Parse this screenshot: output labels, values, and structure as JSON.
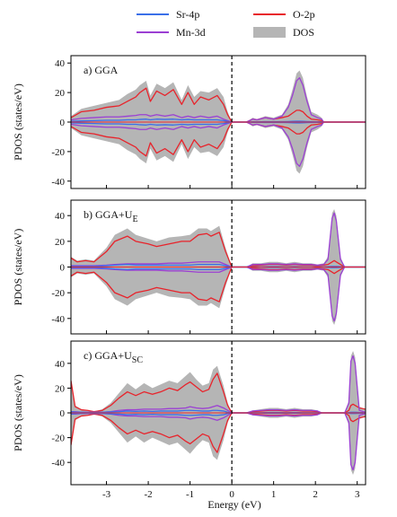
{
  "legend": {
    "items": [
      {
        "key": "sr4p",
        "label": "Sr-4p",
        "color": "#3a6fe8",
        "kind": "line"
      },
      {
        "key": "o2p",
        "label": "O-2p",
        "color": "#e8232b",
        "kind": "line"
      },
      {
        "key": "mn3d",
        "label": "Mn-3d",
        "color": "#9b3fd3",
        "kind": "line"
      },
      {
        "key": "dos",
        "label": "DOS",
        "color": "#b5b5b5",
        "kind": "patch"
      }
    ]
  },
  "xlabel": "Energy (eV)",
  "chart_data": [
    {
      "type": "area",
      "panel_label": "a) GGA",
      "ylabel": "PDOS  (states/eV)",
      "xlim": [
        -3.85,
        3.2
      ],
      "ylim": [
        -45,
        45
      ],
      "xticks": [
        -3,
        -2,
        -1,
        0,
        1,
        2,
        3
      ],
      "yticks": [
        -40,
        -20,
        0,
        20,
        40
      ],
      "fermi_level": 0,
      "series": [
        {
          "name": "DOS",
          "x": [
            -3.85,
            -3.6,
            -3.3,
            -3.0,
            -2.7,
            -2.5,
            -2.3,
            -2.2,
            -2.05,
            -1.95,
            -1.8,
            -1.6,
            -1.4,
            -1.2,
            -1.05,
            -0.9,
            -0.75,
            -0.55,
            -0.35,
            -0.2,
            -0.1,
            0,
            0.35,
            0.5,
            0.6,
            0.8,
            1.0,
            1.2,
            1.35,
            1.45,
            1.55,
            1.62,
            1.7,
            1.8,
            1.9,
            2.05,
            2.15,
            2.2,
            2.3,
            3.2
          ],
          "y": [
            4,
            9,
            11,
            13,
            15,
            19,
            22,
            25,
            28,
            18,
            26,
            23,
            27,
            15,
            25,
            17,
            21,
            20,
            23,
            17,
            7,
            0,
            0,
            3,
            2,
            4,
            3,
            5,
            12,
            22,
            33,
            35,
            30,
            17,
            7,
            5,
            3,
            0,
            0,
            0
          ]
        },
        {
          "name": "O-2p",
          "x": [
            -3.85,
            -3.6,
            -3.3,
            -3.0,
            -2.7,
            -2.5,
            -2.3,
            -2.2,
            -2.05,
            -1.95,
            -1.8,
            -1.6,
            -1.4,
            -1.2,
            -1.05,
            -0.9,
            -0.75,
            -0.55,
            -0.35,
            -0.2,
            -0.1,
            0,
            0.35,
            0.5,
            0.6,
            0.8,
            1.0,
            1.2,
            1.35,
            1.45,
            1.55,
            1.62,
            1.7,
            1.8,
            1.9,
            2.05,
            2.15,
            2.2,
            2.3,
            3.2
          ],
          "y": [
            3,
            7,
            8,
            10,
            11,
            14,
            17,
            20,
            23,
            14,
            21,
            18,
            22,
            12,
            20,
            12,
            17,
            15,
            18,
            12,
            5,
            0,
            0,
            2,
            1.5,
            3,
            2,
            3,
            4,
            6,
            8,
            8,
            7,
            4,
            2,
            1.5,
            1,
            0,
            0,
            0
          ]
        },
        {
          "name": "Mn-3d",
          "x": [
            -3.85,
            -3.6,
            -3.3,
            -3.0,
            -2.7,
            -2.5,
            -2.3,
            -2.2,
            -2.05,
            -1.95,
            -1.8,
            -1.6,
            -1.4,
            -1.2,
            -1.05,
            -0.9,
            -0.75,
            -0.55,
            -0.35,
            -0.2,
            -0.1,
            0,
            0.35,
            0.5,
            0.6,
            0.8,
            1.0,
            1.2,
            1.35,
            1.45,
            1.55,
            1.62,
            1.7,
            1.8,
            1.9,
            2.05,
            2.15,
            2.2,
            2.3,
            3.2
          ],
          "y": [
            1.5,
            2.5,
            3,
            3.5,
            3.5,
            4,
            4.5,
            5,
            5,
            4,
            5,
            4,
            5,
            3,
            4,
            3,
            4,
            3,
            4,
            2,
            1,
            0,
            0,
            2,
            1.5,
            3,
            2,
            4,
            10,
            18,
            28,
            30,
            25,
            14,
            5,
            3,
            2,
            0,
            0,
            0
          ]
        },
        {
          "name": "Sr-4p",
          "x": [
            -3.85,
            -3.6,
            -3.3,
            -3.0,
            -2.7,
            -2.5,
            -2.3,
            -2.2,
            -2.05,
            -1.95,
            -1.8,
            -1.6,
            -1.4,
            -1.2,
            -1.05,
            -0.9,
            -0.75,
            -0.55,
            -0.35,
            -0.2,
            -0.1,
            0,
            0.35,
            0.5,
            0.6,
            0.8,
            1.0,
            1.2,
            1.35,
            1.45,
            1.55,
            1.62,
            1.7,
            1.8,
            1.9,
            2.05,
            2.15,
            2.2,
            2.3,
            3.2
          ],
          "y": [
            0.5,
            0.8,
            1,
            1.2,
            1.2,
            1.5,
            1.5,
            1.8,
            2,
            1.5,
            2,
            1.8,
            2,
            1.5,
            1.8,
            1.5,
            1.5,
            1.5,
            1.5,
            1,
            0.5,
            0,
            0,
            0.2,
            0.2,
            0.3,
            0.3,
            0.3,
            0.4,
            0.5,
            0.6,
            0.6,
            0.5,
            0.4,
            0.3,
            0.2,
            0.2,
            0,
            0,
            0
          ]
        }
      ]
    },
    {
      "type": "area",
      "panel_label": "b) GGA+U",
      "panel_label_sub": "E",
      "ylabel": "PDOS  (states/eV)",
      "xlim": [
        -3.85,
        3.2
      ],
      "ylim": [
        -52,
        52
      ],
      "xticks": [
        -3,
        -2,
        -1,
        0,
        1,
        2,
        3
      ],
      "yticks": [
        -40,
        -20,
        0,
        20,
        40
      ],
      "fermi_level": 0,
      "series": [
        {
          "name": "DOS",
          "x": [
            -3.85,
            -3.7,
            -3.5,
            -3.3,
            -3.0,
            -2.8,
            -2.5,
            -2.3,
            -2.0,
            -1.8,
            -1.5,
            -1.2,
            -1.0,
            -0.8,
            -0.6,
            -0.5,
            -0.3,
            -0.15,
            0,
            0.35,
            0.5,
            0.7,
            0.9,
            1.1,
            1.3,
            1.5,
            1.7,
            1.9,
            2.05,
            2.2,
            2.3,
            2.4,
            2.45,
            2.5,
            2.6,
            2.7,
            3.2
          ],
          "y": [
            8,
            5,
            6,
            5,
            15,
            25,
            30,
            25,
            22,
            20,
            23,
            24,
            25,
            30,
            30,
            28,
            32,
            15,
            0,
            0,
            3,
            3,
            4,
            4,
            3,
            4,
            3,
            3,
            2,
            3,
            8,
            42,
            45,
            40,
            8,
            0,
            0
          ]
        },
        {
          "name": "O-2p",
          "x": [
            -3.85,
            -3.7,
            -3.5,
            -3.3,
            -3.0,
            -2.8,
            -2.5,
            -2.3,
            -2.0,
            -1.8,
            -1.5,
            -1.2,
            -1.0,
            -0.8,
            -0.6,
            -0.5,
            -0.3,
            -0.15,
            0,
            0.35,
            0.5,
            0.7,
            0.9,
            1.1,
            1.3,
            1.5,
            1.7,
            1.9,
            2.05,
            2.2,
            2.3,
            2.4,
            2.45,
            2.5,
            2.6,
            2.7,
            3.2
          ],
          "y": [
            7,
            4,
            5,
            4,
            12,
            20,
            24,
            20,
            18,
            16,
            18,
            20,
            20,
            25,
            26,
            24,
            27,
            12,
            0,
            0,
            1,
            1.5,
            2,
            2,
            1.5,
            2,
            1.5,
            1.5,
            1,
            1.5,
            2,
            4,
            5,
            4,
            2,
            0,
            0
          ]
        },
        {
          "name": "Mn-3d",
          "x": [
            -3.85,
            -3.7,
            -3.5,
            -3.3,
            -3.0,
            -2.8,
            -2.5,
            -2.3,
            -2.0,
            -1.8,
            -1.5,
            -1.2,
            -1.0,
            -0.8,
            -0.6,
            -0.5,
            -0.3,
            -0.15,
            0,
            0.35,
            0.5,
            0.7,
            0.9,
            1.1,
            1.3,
            1.5,
            1.7,
            1.9,
            2.05,
            2.2,
            2.3,
            2.4,
            2.45,
            2.5,
            2.6,
            2.7,
            3.2
          ],
          "y": [
            1,
            1,
            1,
            1,
            1.5,
            2,
            2.5,
            2.5,
            2.5,
            2.5,
            3,
            3,
            3.5,
            4,
            4,
            4,
            4,
            2,
            0,
            0,
            2,
            2,
            2.5,
            2.5,
            2,
            2.5,
            2,
            2,
            1.5,
            2,
            6,
            38,
            42,
            36,
            6,
            0,
            0
          ]
        },
        {
          "name": "Sr-4p",
          "x": [
            -3.85,
            -3.7,
            -3.5,
            -3.3,
            -3.0,
            -2.8,
            -2.5,
            -2.3,
            -2.0,
            -1.8,
            -1.5,
            -1.2,
            -1.0,
            -0.8,
            -0.6,
            -0.5,
            -0.3,
            -0.15,
            0,
            0.35,
            0.5,
            0.7,
            0.9,
            1.1,
            1.3,
            1.5,
            1.7,
            1.9,
            2.05,
            2.2,
            2.3,
            2.4,
            2.45,
            2.5,
            2.6,
            2.7,
            3.2
          ],
          "y": [
            0.5,
            0.5,
            0.5,
            0.5,
            1,
            1.5,
            2,
            1.5,
            1.5,
            1.5,
            1.5,
            1.5,
            1.5,
            2,
            2,
            2,
            2,
            1,
            0,
            0,
            0.2,
            0.2,
            0.3,
            0.3,
            0.2,
            0.3,
            0.2,
            0.2,
            0.2,
            0.2,
            0.3,
            0.5,
            0.5,
            0.5,
            0.3,
            0,
            0
          ]
        }
      ]
    },
    {
      "type": "area",
      "panel_label": "c) GGA+U",
      "panel_label_sub": "SC",
      "ylabel": "PDOS  (states/eV)",
      "xlim": [
        -3.85,
        3.2
      ],
      "ylim": [
        -58,
        58
      ],
      "xticks": [
        -3,
        -2,
        -1,
        0,
        1,
        2,
        3
      ],
      "yticks": [
        -40,
        -20,
        0,
        20,
        40
      ],
      "fermi_level": 0,
      "series": [
        {
          "name": "DOS",
          "x": [
            -3.85,
            -3.75,
            -3.6,
            -3.45,
            -3.3,
            -3.1,
            -2.9,
            -2.7,
            -2.5,
            -2.3,
            -2.1,
            -1.9,
            -1.7,
            -1.5,
            -1.3,
            -1.1,
            -1.0,
            -0.85,
            -0.7,
            -0.55,
            -0.45,
            -0.35,
            -0.2,
            -0.1,
            0,
            0.35,
            0.5,
            0.7,
            0.9,
            1.1,
            1.3,
            1.5,
            1.7,
            1.9,
            2.05,
            2.15,
            2.7,
            2.8,
            2.85,
            2.9,
            2.95,
            3.05,
            3.2
          ],
          "y": [
            28,
            6,
            3,
            2,
            1,
            3,
            8,
            16,
            24,
            19,
            24,
            20,
            23,
            26,
            24,
            30,
            33,
            27,
            22,
            24,
            35,
            38,
            22,
            8,
            0,
            0,
            2,
            3,
            4,
            4,
            3,
            4,
            3,
            3,
            2,
            0,
            0,
            10,
            46,
            50,
            45,
            5,
            3
          ]
        },
        {
          "name": "O-2p",
          "x": [
            -3.85,
            -3.75,
            -3.6,
            -3.45,
            -3.3,
            -3.1,
            -2.9,
            -2.7,
            -2.5,
            -2.3,
            -2.1,
            -1.9,
            -1.7,
            -1.5,
            -1.3,
            -1.1,
            -1.0,
            -0.85,
            -0.7,
            -0.55,
            -0.45,
            -0.35,
            -0.2,
            -0.1,
            0,
            0.35,
            0.5,
            0.7,
            0.9,
            1.1,
            1.3,
            1.5,
            1.7,
            1.9,
            2.05,
            2.15,
            2.7,
            2.8,
            2.85,
            2.9,
            2.95,
            3.05,
            3.2
          ],
          "y": [
            26,
            5,
            2.5,
            2,
            1,
            2,
            6,
            12,
            17,
            14,
            17,
            15,
            17,
            20,
            18,
            23,
            25,
            21,
            17,
            19,
            27,
            32,
            17,
            6,
            0,
            0,
            1,
            1.5,
            2,
            2,
            1.5,
            2,
            1.5,
            1.5,
            1,
            0,
            0,
            2,
            6,
            7,
            6,
            4,
            3
          ]
        },
        {
          "name": "Mn-3d",
          "x": [
            -3.85,
            -3.75,
            -3.6,
            -3.45,
            -3.3,
            -3.1,
            -2.9,
            -2.7,
            -2.5,
            -2.3,
            -2.1,
            -1.9,
            -1.7,
            -1.5,
            -1.3,
            -1.1,
            -1.0,
            -0.85,
            -0.7,
            -0.55,
            -0.45,
            -0.35,
            -0.2,
            -0.1,
            0,
            0.35,
            0.5,
            0.7,
            0.9,
            1.1,
            1.3,
            1.5,
            1.7,
            1.9,
            2.05,
            2.15,
            2.7,
            2.8,
            2.85,
            2.9,
            2.95,
            3.05,
            3.2
          ],
          "y": [
            1,
            1,
            0.5,
            0.5,
            0.5,
            0.5,
            1,
            2,
            2.5,
            2.5,
            3,
            3,
            3,
            3.5,
            3.5,
            4,
            5,
            4,
            3.5,
            4,
            5,
            6,
            4,
            2,
            0,
            0,
            1.5,
            2,
            2.5,
            2.5,
            2,
            2.5,
            2,
            2,
            1.5,
            0,
            0,
            8,
            42,
            46,
            40,
            2,
            0.5
          ]
        },
        {
          "name": "Sr-4p",
          "x": [
            -3.85,
            -3.75,
            -3.6,
            -3.45,
            -3.3,
            -3.1,
            -2.9,
            -2.7,
            -2.5,
            -2.3,
            -2.1,
            -1.9,
            -1.7,
            -1.5,
            -1.3,
            -1.1,
            -1.0,
            -0.85,
            -0.7,
            -0.55,
            -0.45,
            -0.35,
            -0.2,
            -0.1,
            0,
            0.35,
            0.5,
            0.7,
            0.9,
            1.1,
            1.3,
            1.5,
            1.7,
            1.9,
            2.05,
            2.15,
            2.7,
            2.8,
            2.85,
            2.9,
            2.95,
            3.05,
            3.2
          ],
          "y": [
            1,
            0.5,
            0.5,
            0.3,
            0.3,
            0.5,
            0.8,
            1,
            1.5,
            1.2,
            1.5,
            1.2,
            1.5,
            1.5,
            1.5,
            2,
            2,
            1.8,
            1.5,
            1.5,
            2,
            2,
            1.5,
            0.5,
            0,
            0,
            0.2,
            0.2,
            0.3,
            0.3,
            0.2,
            0.3,
            0.2,
            0.2,
            0.2,
            0,
            0,
            0.3,
            0.5,
            0.5,
            0.5,
            0.3,
            0.2
          ]
        }
      ]
    }
  ]
}
